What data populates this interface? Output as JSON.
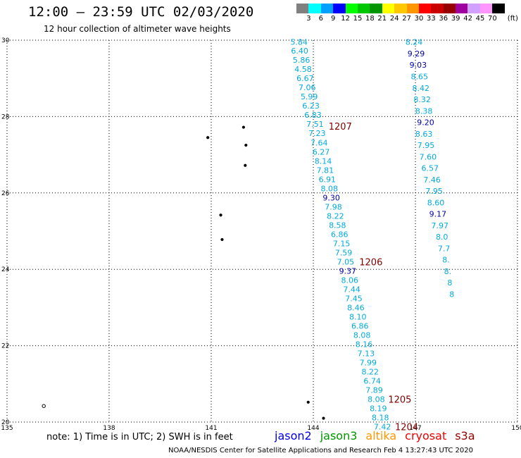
{
  "title": "12:00 – 23:59 UTC 02/03/2020",
  "subtitle": "12 hour collection of altimeter wave heights",
  "legend": {
    "unit": "(ft)",
    "bins": [
      {
        "label": "3",
        "color": "#808080"
      },
      {
        "label": "6",
        "color": "#00ffff"
      },
      {
        "label": "9",
        "color": "#00a0ff"
      },
      {
        "label": "12",
        "color": "#0000ff"
      },
      {
        "label": "15",
        "color": "#00ff00"
      },
      {
        "label": "18",
        "color": "#00c800"
      },
      {
        "label": "21",
        "color": "#009600"
      },
      {
        "label": "24",
        "color": "#ffff00"
      },
      {
        "label": "27",
        "color": "#ffc800"
      },
      {
        "label": "30",
        "color": "#ff9600"
      },
      {
        "label": "33",
        "color": "#ff0000"
      },
      {
        "label": "36",
        "color": "#c80000"
      },
      {
        "label": "39",
        "color": "#960000"
      },
      {
        "label": "42",
        "color": "#a000a0"
      },
      {
        "label": "45",
        "color": "#d2a0ff"
      },
      {
        "label": "70",
        "color": "#ff96ff"
      },
      {
        "label": "",
        "color": "#000000"
      }
    ]
  },
  "axes": {
    "lon_ticks": [
      "135",
      "138",
      "141",
      "144",
      "147",
      "150"
    ],
    "lat_ticks": [
      "20",
      "22",
      "24",
      "26",
      "28",
      "30"
    ],
    "lon_range": [
      135,
      150
    ],
    "lat_range": [
      20,
      30
    ]
  },
  "track_colors": {
    "light": "#00aadd",
    "dark": "#0000aa"
  },
  "tracks": [
    {
      "name": "left",
      "points": [
        {
          "lat": 29.95,
          "lon": 143.58,
          "v": "5.84",
          "c": "light"
        },
        {
          "lat": 29.72,
          "lon": 143.6,
          "v": "6.40",
          "c": "light"
        },
        {
          "lat": 29.48,
          "lon": 143.65,
          "v": "5.86",
          "c": "light"
        },
        {
          "lat": 29.24,
          "lon": 143.7,
          "v": "4.58",
          "c": "light"
        },
        {
          "lat": 29.0,
          "lon": 143.76,
          "v": "6.67",
          "c": "light"
        },
        {
          "lat": 28.76,
          "lon": 143.82,
          "v": "7.06",
          "c": "light"
        },
        {
          "lat": 28.52,
          "lon": 143.88,
          "v": "5.99",
          "c": "light"
        },
        {
          "lat": 28.28,
          "lon": 143.93,
          "v": "6.23",
          "c": "light"
        },
        {
          "lat": 28.04,
          "lon": 143.99,
          "v": "6.83",
          "c": "light"
        },
        {
          "lat": 27.8,
          "lon": 144.05,
          "v": "7.51",
          "c": "light"
        },
        {
          "lat": 27.56,
          "lon": 144.11,
          "v": "7.23",
          "c": "light"
        },
        {
          "lat": 27.32,
          "lon": 144.17,
          "v": "7.64",
          "c": "light"
        },
        {
          "lat": 27.08,
          "lon": 144.23,
          "v": "6.27",
          "c": "light"
        },
        {
          "lat": 26.84,
          "lon": 144.29,
          "v": "8.14",
          "c": "light"
        },
        {
          "lat": 26.6,
          "lon": 144.35,
          "v": "7.81",
          "c": "light"
        },
        {
          "lat": 26.36,
          "lon": 144.41,
          "v": "6.91",
          "c": "light"
        },
        {
          "lat": 26.12,
          "lon": 144.47,
          "v": "8.08",
          "c": "light"
        },
        {
          "lat": 25.88,
          "lon": 144.53,
          "v": "9.30",
          "c": "dark"
        },
        {
          "lat": 25.64,
          "lon": 144.59,
          "v": "7.98",
          "c": "light"
        },
        {
          "lat": 25.4,
          "lon": 144.65,
          "v": "8.22",
          "c": "light"
        },
        {
          "lat": 25.16,
          "lon": 144.71,
          "v": "8.58",
          "c": "light"
        },
        {
          "lat": 24.92,
          "lon": 144.77,
          "v": "6.86",
          "c": "light"
        },
        {
          "lat": 24.68,
          "lon": 144.83,
          "v": "7.15",
          "c": "light"
        },
        {
          "lat": 24.44,
          "lon": 144.89,
          "v": "7.59",
          "c": "light"
        },
        {
          "lat": 24.2,
          "lon": 144.95,
          "v": "7.05",
          "c": "light"
        },
        {
          "lat": 23.96,
          "lon": 145.01,
          "v": "9.37",
          "c": "dark"
        },
        {
          "lat": 23.72,
          "lon": 145.07,
          "v": "8.06",
          "c": "light"
        },
        {
          "lat": 23.48,
          "lon": 145.13,
          "v": "7.44",
          "c": "light"
        },
        {
          "lat": 23.24,
          "lon": 145.19,
          "v": "7.45",
          "c": "light"
        },
        {
          "lat": 23.0,
          "lon": 145.25,
          "v": "8.46",
          "c": "light"
        },
        {
          "lat": 22.76,
          "lon": 145.31,
          "v": "8.10",
          "c": "light"
        },
        {
          "lat": 22.52,
          "lon": 145.37,
          "v": "6.86",
          "c": "light"
        },
        {
          "lat": 22.28,
          "lon": 145.43,
          "v": "8.08",
          "c": "light"
        },
        {
          "lat": 22.04,
          "lon": 145.49,
          "v": "8.16",
          "c": "light"
        },
        {
          "lat": 21.8,
          "lon": 145.55,
          "v": "7.13",
          "c": "light"
        },
        {
          "lat": 21.56,
          "lon": 145.61,
          "v": "7.99",
          "c": "light"
        },
        {
          "lat": 21.32,
          "lon": 145.67,
          "v": "8.22",
          "c": "light"
        },
        {
          "lat": 21.08,
          "lon": 145.73,
          "v": "6.74",
          "c": "light"
        },
        {
          "lat": 20.84,
          "lon": 145.79,
          "v": "7.89",
          "c": "light"
        },
        {
          "lat": 20.6,
          "lon": 145.85,
          "v": "8.08",
          "c": "light"
        },
        {
          "lat": 20.36,
          "lon": 145.91,
          "v": "8.19",
          "c": "light"
        },
        {
          "lat": 20.12,
          "lon": 145.97,
          "v": "8.18",
          "c": "light"
        },
        {
          "lat": 19.88,
          "lon": 146.03,
          "v": "7.42",
          "c": "light"
        }
      ]
    },
    {
      "name": "right",
      "points": [
        {
          "lat": 29.95,
          "lon": 146.96,
          "v": "8.24",
          "c": "light"
        },
        {
          "lat": 29.65,
          "lon": 147.02,
          "v": "9.29",
          "c": "dark"
        },
        {
          "lat": 29.35,
          "lon": 147.08,
          "v": "9.03",
          "c": "dark"
        },
        {
          "lat": 29.05,
          "lon": 147.12,
          "v": "8.65",
          "c": "light"
        },
        {
          "lat": 28.75,
          "lon": 147.16,
          "v": "8.42",
          "c": "light"
        },
        {
          "lat": 28.45,
          "lon": 147.2,
          "v": "8.32",
          "c": "light"
        },
        {
          "lat": 28.15,
          "lon": 147.25,
          "v": "8.38",
          "c": "light"
        },
        {
          "lat": 27.85,
          "lon": 147.3,
          "v": "9.20",
          "c": "dark"
        },
        {
          "lat": 27.55,
          "lon": 147.25,
          "v": "8.63",
          "c": "light"
        },
        {
          "lat": 27.25,
          "lon": 147.31,
          "v": "7.95",
          "c": "light"
        },
        {
          "lat": 26.95,
          "lon": 147.37,
          "v": "7.60",
          "c": "light"
        },
        {
          "lat": 26.65,
          "lon": 147.43,
          "v": "6.57",
          "c": "light"
        },
        {
          "lat": 26.35,
          "lon": 147.49,
          "v": "7.46",
          "c": "light"
        },
        {
          "lat": 26.05,
          "lon": 147.55,
          "v": "7.95",
          "c": "light"
        },
        {
          "lat": 25.75,
          "lon": 147.6,
          "v": "8.60",
          "c": "light"
        },
        {
          "lat": 25.45,
          "lon": 147.66,
          "v": "9.17",
          "c": "dark"
        },
        {
          "lat": 25.15,
          "lon": 147.72,
          "v": "7.97",
          "c": "light"
        },
        {
          "lat": 24.85,
          "lon": 147.78,
          "v": "8.0",
          "c": "light"
        },
        {
          "lat": 24.55,
          "lon": 147.84,
          "v": "7.7",
          "c": "light"
        },
        {
          "lat": 24.25,
          "lon": 147.9,
          "v": "8.",
          "c": "light"
        },
        {
          "lat": 23.95,
          "lon": 147.95,
          "v": "8.",
          "c": "light"
        },
        {
          "lat": 23.65,
          "lon": 148.01,
          "v": "8",
          "c": "light"
        },
        {
          "lat": 23.35,
          "lon": 148.07,
          "v": "8",
          "c": "light"
        }
      ]
    }
  ],
  "pass_labels": [
    {
      "text": "1207",
      "lat": 27.75,
      "lon": 144.45
    },
    {
      "text": "1206",
      "lat": 24.2,
      "lon": 145.35
    },
    {
      "text": "1205",
      "lat": 20.6,
      "lon": 146.2
    },
    {
      "text": "1204",
      "lat": 19.88,
      "lon": 146.4
    }
  ],
  "islands": [
    {
      "lat": 27.72,
      "lon": 141.95
    },
    {
      "lat": 27.25,
      "lon": 142.02
    },
    {
      "lat": 26.72,
      "lon": 142.0
    },
    {
      "lat": 27.45,
      "lon": 140.9
    },
    {
      "lat": 25.42,
      "lon": 141.28
    },
    {
      "lat": 24.78,
      "lon": 141.32
    },
    {
      "lat": 20.42,
      "lon": 136.08
    },
    {
      "lat": 20.52,
      "lon": 143.85
    },
    {
      "lat": 20.1,
      "lon": 144.3
    }
  ],
  "note": "note:  1) Time is in UTC;  2) SWH is in feet",
  "satellites": [
    {
      "name": "jason2",
      "color": "#0000ee"
    },
    {
      "name": "jason3",
      "color": "#009600"
    },
    {
      "name": "altika",
      "color": "#ff9600"
    },
    {
      "name": "cryosat",
      "color": "#ee0000"
    },
    {
      "name": "s3a",
      "color": "#960000"
    }
  ],
  "footer": "NOAA/NESDIS Center for Satellite Applications and Research    Feb  4 13:27:43 UTC 2020"
}
